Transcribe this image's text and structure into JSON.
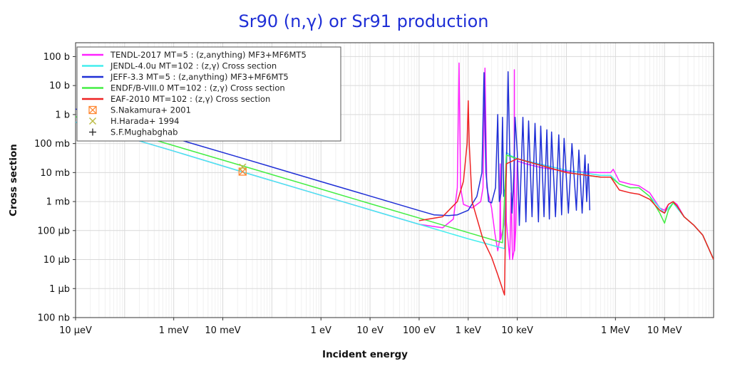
{
  "chart_data": {
    "type": "line",
    "title": "Sr90 (n,γ) or Sr91 production",
    "xlabel": "Incident energy",
    "ylabel": "Cross section",
    "x_scale": "log",
    "y_scale": "log",
    "xlim_eV": [
      1e-05,
      100000000.0
    ],
    "ylim_barns": [
      1e-07,
      300
    ],
    "grid": true,
    "legend_position": "top-left",
    "x_ticks": [
      {
        "value": 1e-05,
        "label": "10 μeV"
      },
      {
        "value": 0.001,
        "label": "1 meV"
      },
      {
        "value": 0.01,
        "label": "10 meV"
      },
      {
        "value": 1,
        "label": "1 eV"
      },
      {
        "value": 10,
        "label": "10 eV"
      },
      {
        "value": 100,
        "label": "100 eV"
      },
      {
        "value": 1000,
        "label": "1 keV"
      },
      {
        "value": 10000,
        "label": "10 keV"
      },
      {
        "value": 1000000,
        "label": "1 MeV"
      },
      {
        "value": 10000000,
        "label": "10 MeV"
      }
    ],
    "y_ticks": [
      {
        "value": 100,
        "label": "100 b"
      },
      {
        "value": 10,
        "label": "10 b"
      },
      {
        "value": 1,
        "label": "1 b"
      },
      {
        "value": 0.1,
        "label": "100 mb"
      },
      {
        "value": 0.01,
        "label": "10 mb"
      },
      {
        "value": 0.001,
        "label": "1 mb"
      },
      {
        "value": 0.0001,
        "label": "100 μb"
      },
      {
        "value": 1e-05,
        "label": "10 μb"
      },
      {
        "value": 1e-06,
        "label": "1 μb"
      },
      {
        "value": 1e-07,
        "label": "100 nb"
      }
    ],
    "series": [
      {
        "name": "TENDL-2017  MT=5 : (z,anything) MF3+MF6MT5",
        "color": "#ff22ff",
        "kind": "line",
        "points": [
          [
            1e-05,
            0.55
          ],
          [
            0.001,
            0.055
          ],
          [
            0.0253,
            0.0105
          ],
          [
            1,
            0.00165
          ],
          [
            10,
            0.00052
          ],
          [
            100,
            0.000165
          ],
          [
            300,
            0.000125
          ],
          [
            500,
            0.00025
          ],
          [
            600,
            0.003
          ],
          [
            650,
            60
          ],
          [
            700,
            0.003
          ],
          [
            800,
            0.0008
          ],
          [
            1200,
            0.0006
          ],
          [
            1800,
            0.001
          ],
          [
            2000,
            0.003
          ],
          [
            2200,
            40
          ],
          [
            2400,
            0.003
          ],
          [
            3000,
            0.0006
          ],
          [
            3500,
            8e-05
          ],
          [
            4000,
            2e-05
          ],
          [
            4400,
            5e-05
          ],
          [
            4500,
            0.02
          ],
          [
            4600,
            5e-05
          ],
          [
            5500,
            0.0002
          ],
          [
            5800,
            0.01
          ],
          [
            6000,
            0.0002
          ],
          [
            7000,
            1e-05
          ],
          [
            7500,
            0.002
          ],
          [
            8000,
            1e-05
          ],
          [
            8600,
            2e-05
          ],
          [
            8700,
            35
          ],
          [
            8800,
            2e-05
          ],
          [
            9300,
            0.0001
          ],
          [
            10000,
            0.025
          ],
          [
            15000,
            0.02
          ],
          [
            30000,
            0.015
          ],
          [
            100000,
            0.011
          ],
          [
            500000,
            0.01
          ],
          [
            800000,
            0.01
          ],
          [
            900000,
            0.013
          ],
          [
            1200000,
            0.005
          ],
          [
            2000000,
            0.004
          ],
          [
            3000000,
            0.0035
          ],
          [
            5000000,
            0.002
          ],
          [
            8000000,
            0.0006
          ],
          [
            10000000,
            0.0005
          ],
          [
            12000000,
            0.0008
          ],
          [
            15000000,
            0.001
          ],
          [
            18000000,
            0.0008
          ],
          [
            25000000,
            0.0003
          ],
          [
            40000000,
            0.00015
          ],
          [
            60000000,
            7e-05
          ],
          [
            100000000,
            1e-05
          ]
        ]
      },
      {
        "name": "JENDL-4.0u  MT=102 : (z,γ) Cross section",
        "color": "#44eeee",
        "kind": "line",
        "points": [
          [
            1e-05,
            0.55
          ],
          [
            0.001,
            0.055
          ],
          [
            0.0253,
            0.0105
          ],
          [
            1,
            0.00165
          ],
          [
            10,
            0.00052
          ],
          [
            100,
            0.000165
          ],
          [
            1000,
            5.2e-05
          ],
          [
            5500,
            2.4e-05
          ],
          [
            6000,
            0.05
          ],
          [
            7000,
            0.04
          ],
          [
            10000,
            0.03
          ],
          [
            100000,
            0.012
          ],
          [
            500000,
            0.008
          ],
          [
            800000,
            0.008
          ],
          [
            1200000,
            0.004
          ],
          [
            2000000,
            0.003
          ],
          [
            3000000,
            0.003
          ],
          [
            5000000,
            0.0015
          ],
          [
            8000000,
            0.0006
          ],
          [
            10000000,
            0.0004
          ],
          [
            12000000,
            0.0006
          ],
          [
            15000000,
            0.0009
          ],
          [
            18000000,
            0.0006
          ],
          [
            25000000,
            0.0003
          ],
          [
            40000000,
            0.00015
          ],
          [
            60000000,
            7e-05
          ],
          [
            100000000,
            1e-05
          ]
        ]
      },
      {
        "name": "JEFF-3.3  MT=5 : (z,anything) MF3+MF6MT5",
        "color": "#1f2fd6",
        "kind": "line",
        "points": [
          [
            1e-05,
            1.55
          ],
          [
            0.001,
            0.155
          ],
          [
            0.0253,
            0.031
          ],
          [
            1,
            0.0049
          ],
          [
            10,
            0.00155
          ],
          [
            100,
            0.00049
          ],
          [
            200,
            0.00035
          ],
          [
            400,
            0.00033
          ],
          [
            600,
            0.00035
          ],
          [
            1000,
            0.0005
          ],
          [
            1500,
            0.0015
          ],
          [
            1900,
            0.01
          ],
          [
            2100,
            28
          ],
          [
            2300,
            0.01
          ],
          [
            2600,
            0.001
          ],
          [
            3000,
            0.0009
          ],
          [
            3600,
            0.003
          ],
          [
            4000,
            1.0
          ],
          [
            4300,
            0.001
          ],
          [
            4700,
            0.002
          ],
          [
            5000,
            0.8
          ],
          [
            5300,
            0.0015
          ],
          [
            5800,
            0.004
          ],
          [
            6000,
            0.01
          ],
          [
            6500,
            30
          ],
          [
            7000,
            0.05
          ],
          [
            7400,
            0.01
          ],
          [
            7800,
            0.0004
          ],
          [
            8200,
            0.002
          ],
          [
            8500,
            0.008
          ],
          [
            9000,
            0.8
          ],
          [
            10000,
            0.05
          ],
          [
            11000,
            0.00015
          ],
          [
            13000,
            0.8
          ],
          [
            15000,
            0.0002
          ],
          [
            17000,
            0.6
          ],
          [
            20000,
            0.0003
          ],
          [
            23000,
            0.5
          ],
          [
            27000,
            0.0002
          ],
          [
            30000,
            0.4
          ],
          [
            35000,
            0.0003
          ],
          [
            40000,
            0.3
          ],
          [
            45000,
            0.00025
          ],
          [
            50000,
            0.25
          ],
          [
            60000,
            0.0003
          ],
          [
            70000,
            0.2
          ],
          [
            80000,
            0.00035
          ],
          [
            90000,
            0.15
          ],
          [
            110000,
            0.0004
          ],
          [
            130000,
            0.1
          ],
          [
            160000,
            0.0005
          ],
          [
            180000,
            0.06
          ],
          [
            210000,
            0.0004
          ],
          [
            240000,
            0.04
          ],
          [
            260000,
            0.001
          ],
          [
            280000,
            0.02
          ],
          [
            300000,
            0.0005
          ]
        ]
      },
      {
        "name": "ENDF/B-VIII.0  MT=102 : (z,γ) Cross section",
        "color": "#44ee44",
        "kind": "line",
        "points": [
          [
            1e-05,
            0.85
          ],
          [
            0.001,
            0.085
          ],
          [
            0.0253,
            0.017
          ],
          [
            1,
            0.0027
          ],
          [
            10,
            0.00085
          ],
          [
            100,
            0.00027
          ],
          [
            1000,
            8.5e-05
          ],
          [
            5000,
            3.8e-05
          ],
          [
            6000,
            0.04
          ],
          [
            10000,
            0.03
          ],
          [
            100000,
            0.01
          ],
          [
            500000,
            0.007
          ],
          [
            800000,
            0.007
          ],
          [
            1200000,
            0.004
          ],
          [
            2000000,
            0.003
          ],
          [
            3000000,
            0.003
          ],
          [
            5000000,
            0.0015
          ],
          [
            8000000,
            0.0004
          ],
          [
            10000000,
            0.00018
          ],
          [
            12000000,
            0.0005
          ],
          [
            15000000,
            0.0009
          ],
          [
            18000000,
            0.0007
          ],
          [
            25000000,
            0.0003
          ],
          [
            40000000,
            0.00015
          ],
          [
            60000000,
            7e-05
          ],
          [
            100000000,
            1e-05
          ]
        ]
      },
      {
        "name": "EAF-2010  MT=102 : (z,γ) Cross section",
        "color": "#ee2222",
        "kind": "line",
        "points": [
          [
            100,
            0.00022
          ],
          [
            300,
            0.0003
          ],
          [
            600,
            0.001
          ],
          [
            800,
            0.005
          ],
          [
            950,
            0.1
          ],
          [
            1000,
            3
          ],
          [
            1050,
            0.1
          ],
          [
            1200,
            0.001
          ],
          [
            2000,
            5e-05
          ],
          [
            3000,
            1.2e-05
          ],
          [
            4000,
            3e-06
          ],
          [
            5500,
            6e-07
          ],
          [
            6000,
            0.02
          ],
          [
            10000,
            0.03
          ],
          [
            100000,
            0.01
          ],
          [
            500000,
            0.007
          ],
          [
            800000,
            0.007
          ],
          [
            1200000,
            0.0025
          ],
          [
            2000000,
            0.002
          ],
          [
            3000000,
            0.0018
          ],
          [
            5000000,
            0.0012
          ],
          [
            8000000,
            0.0005
          ],
          [
            10000000,
            0.0004
          ],
          [
            12000000,
            0.0008
          ],
          [
            15000000,
            0.001
          ],
          [
            18000000,
            0.0007
          ],
          [
            25000000,
            0.0003
          ],
          [
            40000000,
            0.00015
          ],
          [
            60000000,
            7e-05
          ],
          [
            100000000,
            1e-05
          ]
        ]
      },
      {
        "name": "S.Nakamura+ 2001",
        "color": "#ff8833",
        "kind": "marker",
        "marker": "boxed-x",
        "points": [
          [
            0.0253,
            0.0108
          ]
        ]
      },
      {
        "name": "H.Harada+ 1994",
        "color": "#bbbb44",
        "kind": "marker",
        "marker": "x",
        "points": [
          [
            0.0253,
            0.0155
          ]
        ]
      },
      {
        "name": "S.F.Mughabghab",
        "color": "#222222",
        "kind": "marker",
        "marker": "plus",
        "points": []
      }
    ]
  }
}
